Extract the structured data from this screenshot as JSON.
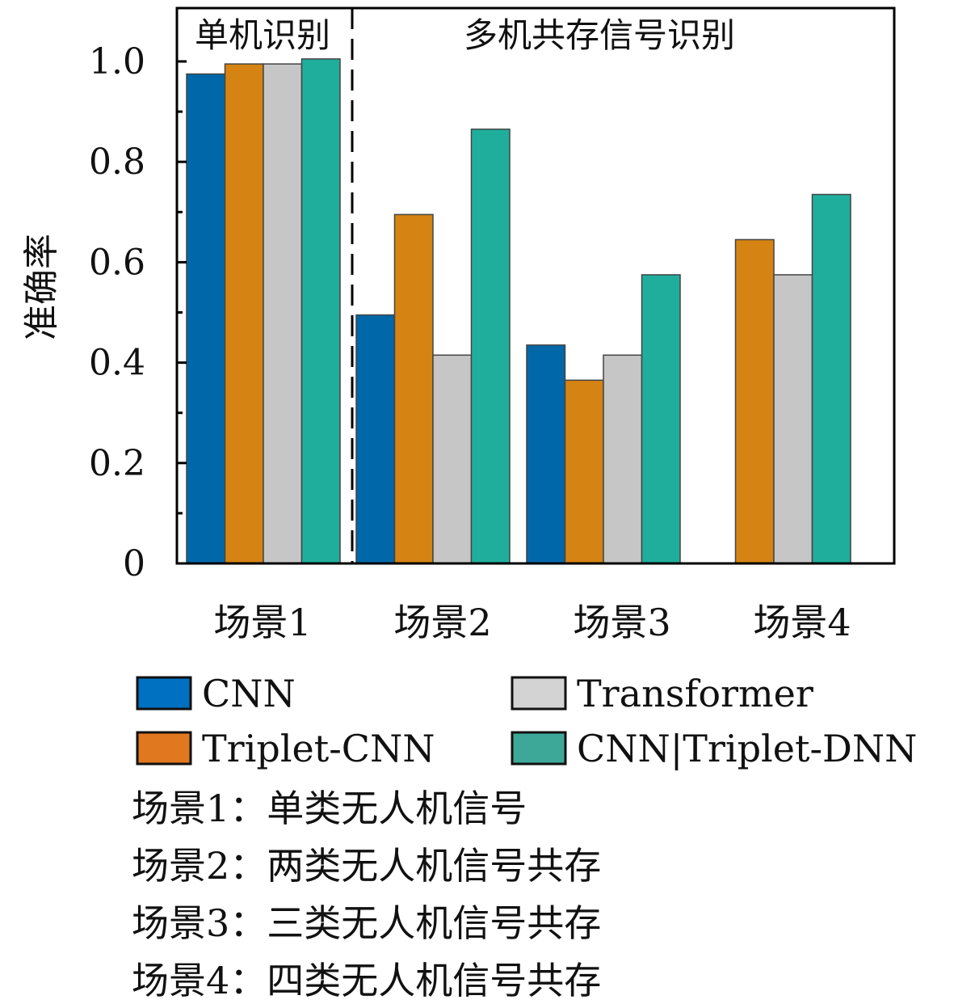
{
  "chart_data": {
    "type": "bar",
    "title": "",
    "xlabel": "",
    "ylabel": "准确率",
    "ylim": [
      0,
      1.1
    ],
    "yticks": [
      "0",
      "0.2",
      "0.4",
      "0.6",
      "0.8",
      "1.0"
    ],
    "ytick_values": [
      0,
      0.2,
      0.4,
      0.6,
      0.8,
      1.0
    ],
    "categories": [
      "场景1",
      "场景2",
      "场景3",
      "场景4"
    ],
    "series": [
      {
        "name": "CNN",
        "color": "#0068a9",
        "legend_color": "#0070c0",
        "values": [
          0.975,
          0.495,
          0.435,
          null
        ]
      },
      {
        "name": "Triplet-CNN",
        "color": "#d58312",
        "legend_color": "#e07820",
        "values": [
          0.995,
          0.695,
          0.365,
          0.645
        ]
      },
      {
        "name": "Transformer",
        "color": "#c6c6c6",
        "legend_color": "#d3d3d3",
        "values": [
          0.995,
          0.415,
          0.415,
          0.575
        ]
      },
      {
        "name": "CNN|Triplet-DNN",
        "color": "#20ae9c",
        "legend_color": "#3ea898",
        "values": [
          1.005,
          0.865,
          0.575,
          0.735
        ]
      }
    ],
    "region_labels": [
      "单机识别",
      "多机共存信号识别"
    ],
    "legend_placement": "bottom",
    "grid": false,
    "notes": [
      "场景1：单类无人机信号",
      "场景2：两类无人机信号共存",
      "场景3：三类无人机信号共存",
      "场景4：四类无人机信号共存"
    ]
  }
}
